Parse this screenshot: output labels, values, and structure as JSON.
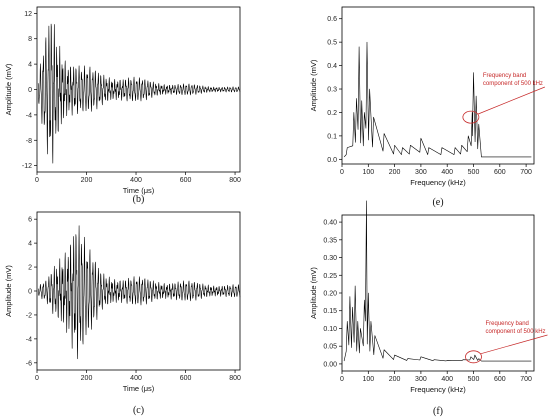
{
  "chart_data": [
    {
      "id": "b",
      "type": "line",
      "panel_label": "(b)",
      "xlabel": "Time (μs)",
      "ylabel": "Amplitude (mV)",
      "xlim": [
        0,
        820
      ],
      "ylim": [
        -13,
        13
      ],
      "xticks": [
        0,
        200,
        400,
        600,
        800
      ],
      "yticks": [
        -12,
        -8,
        -4,
        0,
        4,
        8,
        12
      ],
      "signal": {
        "t0": 5,
        "t_end": 820,
        "envelope": [
          [
            5,
            1.5
          ],
          [
            30,
            6
          ],
          [
            60,
            12
          ],
          [
            80,
            9
          ],
          [
            120,
            5
          ],
          [
            180,
            3
          ],
          [
            280,
            2.2
          ],
          [
            400,
            1.5
          ],
          [
            550,
            0.8
          ],
          [
            700,
            0.5
          ],
          [
            820,
            0.3
          ]
        ],
        "freq_per_us": 0.09
      }
    },
    {
      "id": "c",
      "type": "line",
      "panel_label": "(c)",
      "xlabel": "Time (μs)",
      "ylabel": "Amplitude (mV)",
      "xlim": [
        0,
        820
      ],
      "ylim": [
        -6.6,
        6.6
      ],
      "xticks": [
        0,
        200,
        400,
        600,
        800
      ],
      "yticks": [
        -6,
        -4,
        -2,
        0,
        2,
        4,
        6
      ],
      "signal": {
        "t0": 5,
        "t_end": 820,
        "envelope": [
          [
            5,
            0.3
          ],
          [
            40,
            0.8
          ],
          [
            90,
            3
          ],
          [
            140,
            5
          ],
          [
            160,
            5.5
          ],
          [
            200,
            3
          ],
          [
            260,
            1.5
          ],
          [
            350,
            1
          ],
          [
            500,
            0.8
          ],
          [
            650,
            0.6
          ],
          [
            820,
            0.4
          ]
        ],
        "freq_per_us": 0.09
      }
    },
    {
      "id": "e",
      "type": "line",
      "panel_label": "(e)",
      "xlabel": "Frequency (kHz)",
      "ylabel": "Amplitude (mV)",
      "xlim": [
        0,
        730
      ],
      "ylim": [
        -0.02,
        0.65
      ],
      "xticks": [
        0,
        100,
        200,
        300,
        400,
        500,
        600,
        700
      ],
      "yticks": [
        0.0,
        0.1,
        0.2,
        0.3,
        0.4,
        0.5,
        0.6
      ],
      "peaks": [
        [
          20,
          0.05
        ],
        [
          45,
          0.2
        ],
        [
          55,
          0.26
        ],
        [
          65,
          0.48
        ],
        [
          75,
          0.25
        ],
        [
          85,
          0.2
        ],
        [
          95,
          0.5
        ],
        [
          105,
          0.3
        ],
        [
          120,
          0.18
        ],
        [
          160,
          0.11
        ],
        [
          200,
          0.06
        ],
        [
          230,
          0.05
        ],
        [
          260,
          0.06
        ],
        [
          300,
          0.09
        ],
        [
          330,
          0.05
        ],
        [
          380,
          0.05
        ],
        [
          430,
          0.05
        ],
        [
          455,
          0.06
        ],
        [
          480,
          0.1
        ],
        [
          495,
          0.2
        ],
        [
          500,
          0.37
        ],
        [
          510,
          0.27
        ],
        [
          520,
          0.15
        ]
      ],
      "baseline": 0.01,
      "annotation": {
        "lines": [
          "Frequency band",
          "component of 500 kHz"
        ],
        "x": 490,
        "y": 0.18
      }
    },
    {
      "id": "f",
      "type": "line",
      "panel_label": "(f)",
      "xlabel": "Frequency (kHz)",
      "ylabel": "Amplitude (mV)",
      "xlim": [
        0,
        730
      ],
      "ylim": [
        -0.02,
        0.42
      ],
      "xticks": [
        0,
        100,
        200,
        300,
        400,
        500,
        600,
        700
      ],
      "yticks": [
        0.0,
        0.05,
        0.1,
        0.15,
        0.2,
        0.25,
        0.3,
        0.35,
        0.4
      ],
      "peaks": [
        [
          20,
          0.12
        ],
        [
          30,
          0.19
        ],
        [
          40,
          0.16
        ],
        [
          50,
          0.22
        ],
        [
          60,
          0.12
        ],
        [
          70,
          0.1
        ],
        [
          85,
          0.18
        ],
        [
          93,
          0.46
        ],
        [
          100,
          0.2
        ],
        [
          110,
          0.12
        ],
        [
          125,
          0.08
        ],
        [
          160,
          0.04
        ],
        [
          200,
          0.025
        ],
        [
          250,
          0.015
        ],
        [
          300,
          0.02
        ],
        [
          350,
          0.012
        ],
        [
          400,
          0.01
        ],
        [
          460,
          0.012
        ],
        [
          490,
          0.02
        ],
        [
          505,
          0.025
        ],
        [
          520,
          0.015
        ]
      ],
      "baseline": 0.008,
      "annotation": {
        "lines": [
          "Frequency band",
          "component of 500 kHz"
        ],
        "x": 500,
        "y": 0.02
      }
    }
  ]
}
